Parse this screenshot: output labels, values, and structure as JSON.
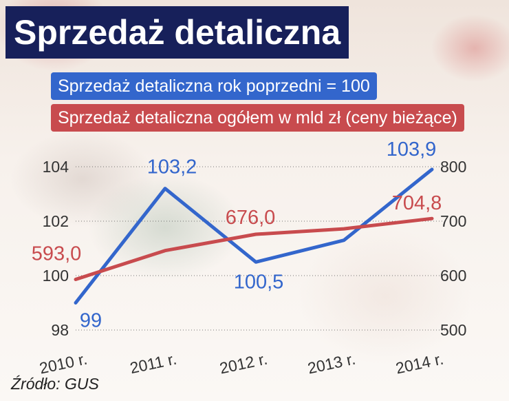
{
  "title": "Sprzedaż detaliczna",
  "source": "Źródło: GUS",
  "colors": {
    "title_bg": "#17205a",
    "blue": "#3366cc",
    "red": "#c84b4e"
  },
  "chart_data": {
    "type": "line",
    "title": "Sprzedaż detaliczna",
    "categories": [
      "2010 r.",
      "2011 r.",
      "2012 r.",
      "2013 r.",
      "2014 r."
    ],
    "series": [
      {
        "name": "Sprzedaż detaliczna rok poprzedni = 100",
        "axis": "left",
        "color": "#3366cc",
        "values": [
          99.0,
          103.2,
          100.5,
          101.3,
          103.9
        ],
        "labels": [
          "99",
          "103,2",
          "100,5",
          "",
          "103,9"
        ]
      },
      {
        "name": "Sprzedaż detaliczna ogółem w mld zł (ceny bieżące)",
        "axis": "right",
        "color": "#c84b4e",
        "values": [
          593.0,
          646.0,
          676.0,
          686.0,
          704.8
        ],
        "labels": [
          "593,0",
          "",
          "676,0",
          "",
          "704,8"
        ]
      }
    ],
    "left_axis": {
      "ticks": [
        "98",
        "100",
        "102",
        "104"
      ],
      "range": [
        98,
        104
      ]
    },
    "right_axis": {
      "ticks": [
        "500",
        "600",
        "700",
        "800"
      ],
      "range": [
        500,
        800
      ]
    },
    "grid": true,
    "legend": "top-left"
  }
}
